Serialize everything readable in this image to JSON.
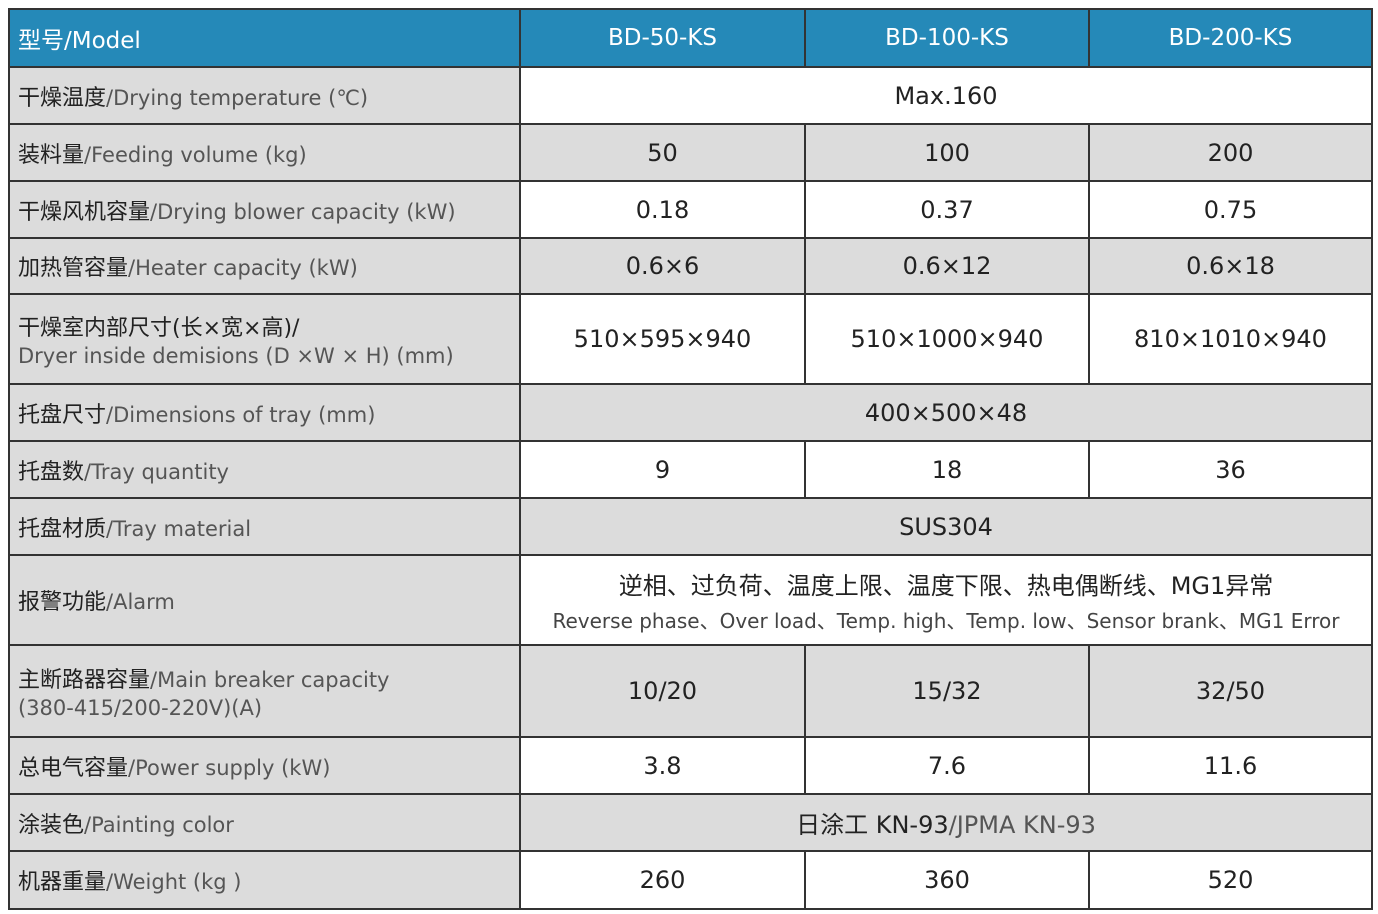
{
  "header": {
    "label_cn": "型号",
    "label_en": "/Model",
    "models": [
      "BD-50-KS",
      "BD-100-KS",
      "BD-200-KS"
    ]
  },
  "colors": {
    "header_bg": "#2589b8",
    "label_bg": "#dcdcdc"
  },
  "rows": [
    {
      "cn": "干燥温度",
      "en": "/Drying temperature (℃)",
      "span": "Max.160",
      "shade": "white",
      "h": 57
    },
    {
      "cn": "装料量",
      "en": "/Feeding volume (kg)",
      "values": [
        "50",
        "100",
        "200"
      ],
      "shade": "gray",
      "h": 57
    },
    {
      "cn": "干燥风机容量",
      "en": "/Drying blower capacity (kW)",
      "values": [
        "0.18",
        "0.37",
        "0.75"
      ],
      "shade": "white",
      "h": 57
    },
    {
      "cn": "加热管容量",
      "en": "/Heater capacity (kW)",
      "values": [
        "0.6×6",
        "0.6×12",
        "0.6×18"
      ],
      "shade": "gray",
      "h": 56
    },
    {
      "cn": "干燥室内部尺寸(长×宽×高)/",
      "en": "",
      "en2": "Dryer inside demisions (D ×W × H) (mm)",
      "values": [
        "510×595×940",
        "510×1000×940",
        "810×1010×940"
      ],
      "shade": "white",
      "h": 90
    },
    {
      "cn": "托盘尺寸",
      "en": "/Dimensions of tray (mm)",
      "span": "400×500×48",
      "shade": "gray",
      "h": 57
    },
    {
      "cn": "托盘数",
      "en": "/Tray quantity",
      "values": [
        "9",
        "18",
        "36"
      ],
      "shade": "white",
      "h": 57
    },
    {
      "cn": "托盘材质",
      "en": "/Tray material",
      "span": "SUS304",
      "shade": "gray",
      "h": 57
    },
    {
      "cn": "报警功能",
      "en": "/Alarm",
      "span": "逆相、过负荷、温度上限、温度下限、热电偶断线、MG1异常",
      "span_sub": "Reverse phase、Over load、Temp. high、Temp. low、Sensor brank、MG1 Error",
      "shade": "white",
      "h": 90
    },
    {
      "cn": "主断路器容量",
      "en": "/Main breaker capacity",
      "en2": "(380-415/200-220V)(A)",
      "values": [
        "10/20",
        "15/32",
        "32/50"
      ],
      "shade": "gray",
      "h": 92
    },
    {
      "cn": "总电气容量",
      "en": "/Power supply (kW)",
      "values": [
        "3.8",
        "7.6",
        "11.6"
      ],
      "shade": "white",
      "h": 57
    },
    {
      "cn": "涂装色",
      "en": "/Painting color",
      "span": "日涂工 KN-93",
      "span_muted": "/JPMA KN-93",
      "shade": "gray",
      "h": 57
    },
    {
      "cn": "机器重量",
      "en": "/Weight (kg )",
      "values": [
        "260",
        "360",
        "520"
      ],
      "shade": "white",
      "h": 58
    }
  ]
}
